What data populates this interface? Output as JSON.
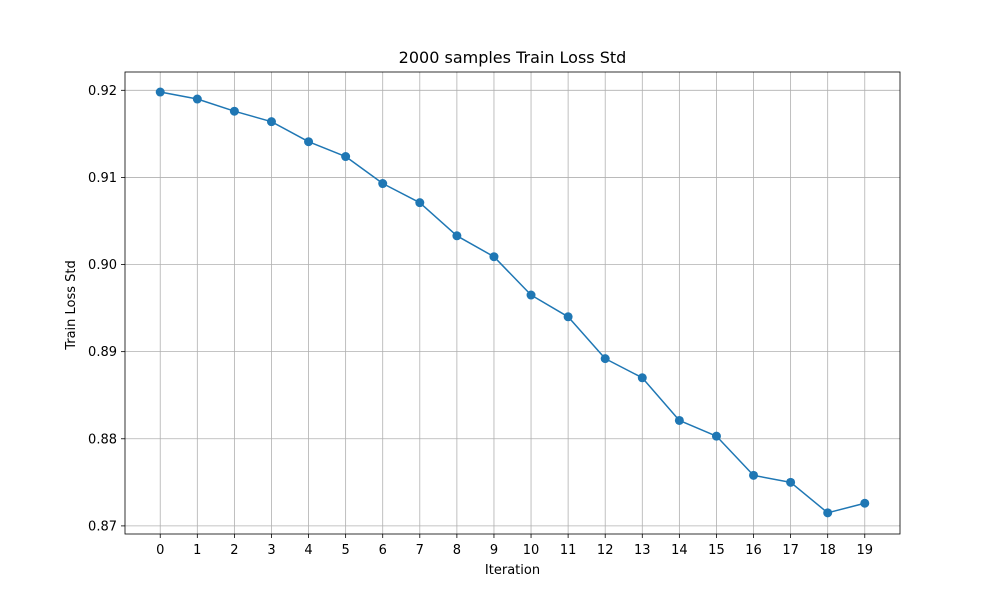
{
  "chart_data": {
    "type": "line",
    "title": "2000 samples Train Loss Std",
    "xlabel": "Iteration",
    "ylabel": "Train Loss Std",
    "x": [
      0,
      1,
      2,
      3,
      4,
      5,
      6,
      7,
      8,
      9,
      10,
      11,
      12,
      13,
      14,
      15,
      16,
      17,
      18,
      19
    ],
    "series": [
      {
        "values": [
          0.9198,
          0.919,
          0.9176,
          0.9164,
          0.9141,
          0.9124,
          0.9093,
          0.9071,
          0.9033,
          0.9009,
          0.8965,
          0.894,
          0.8892,
          0.887,
          0.8821,
          0.8803,
          0.8758,
          0.875,
          0.8715,
          0.8726
        ],
        "color": "#1f77b4",
        "marker": "circle"
      }
    ],
    "xticks": [
      "0",
      "1",
      "2",
      "3",
      "4",
      "5",
      "6",
      "7",
      "8",
      "9",
      "10",
      "11",
      "12",
      "13",
      "14",
      "15",
      "16",
      "17",
      "18",
      "19"
    ],
    "yticks": [
      0.87,
      0.88,
      0.89,
      0.9,
      0.91,
      0.92
    ],
    "ytick_labels": [
      "0.87",
      "0.88",
      "0.89",
      "0.90",
      "0.91",
      "0.92"
    ],
    "xlim": [
      -0.95,
      19.95
    ],
    "ylim": [
      0.86907,
      0.9221
    ],
    "grid": true,
    "grid_color": "#b0b0b0"
  }
}
